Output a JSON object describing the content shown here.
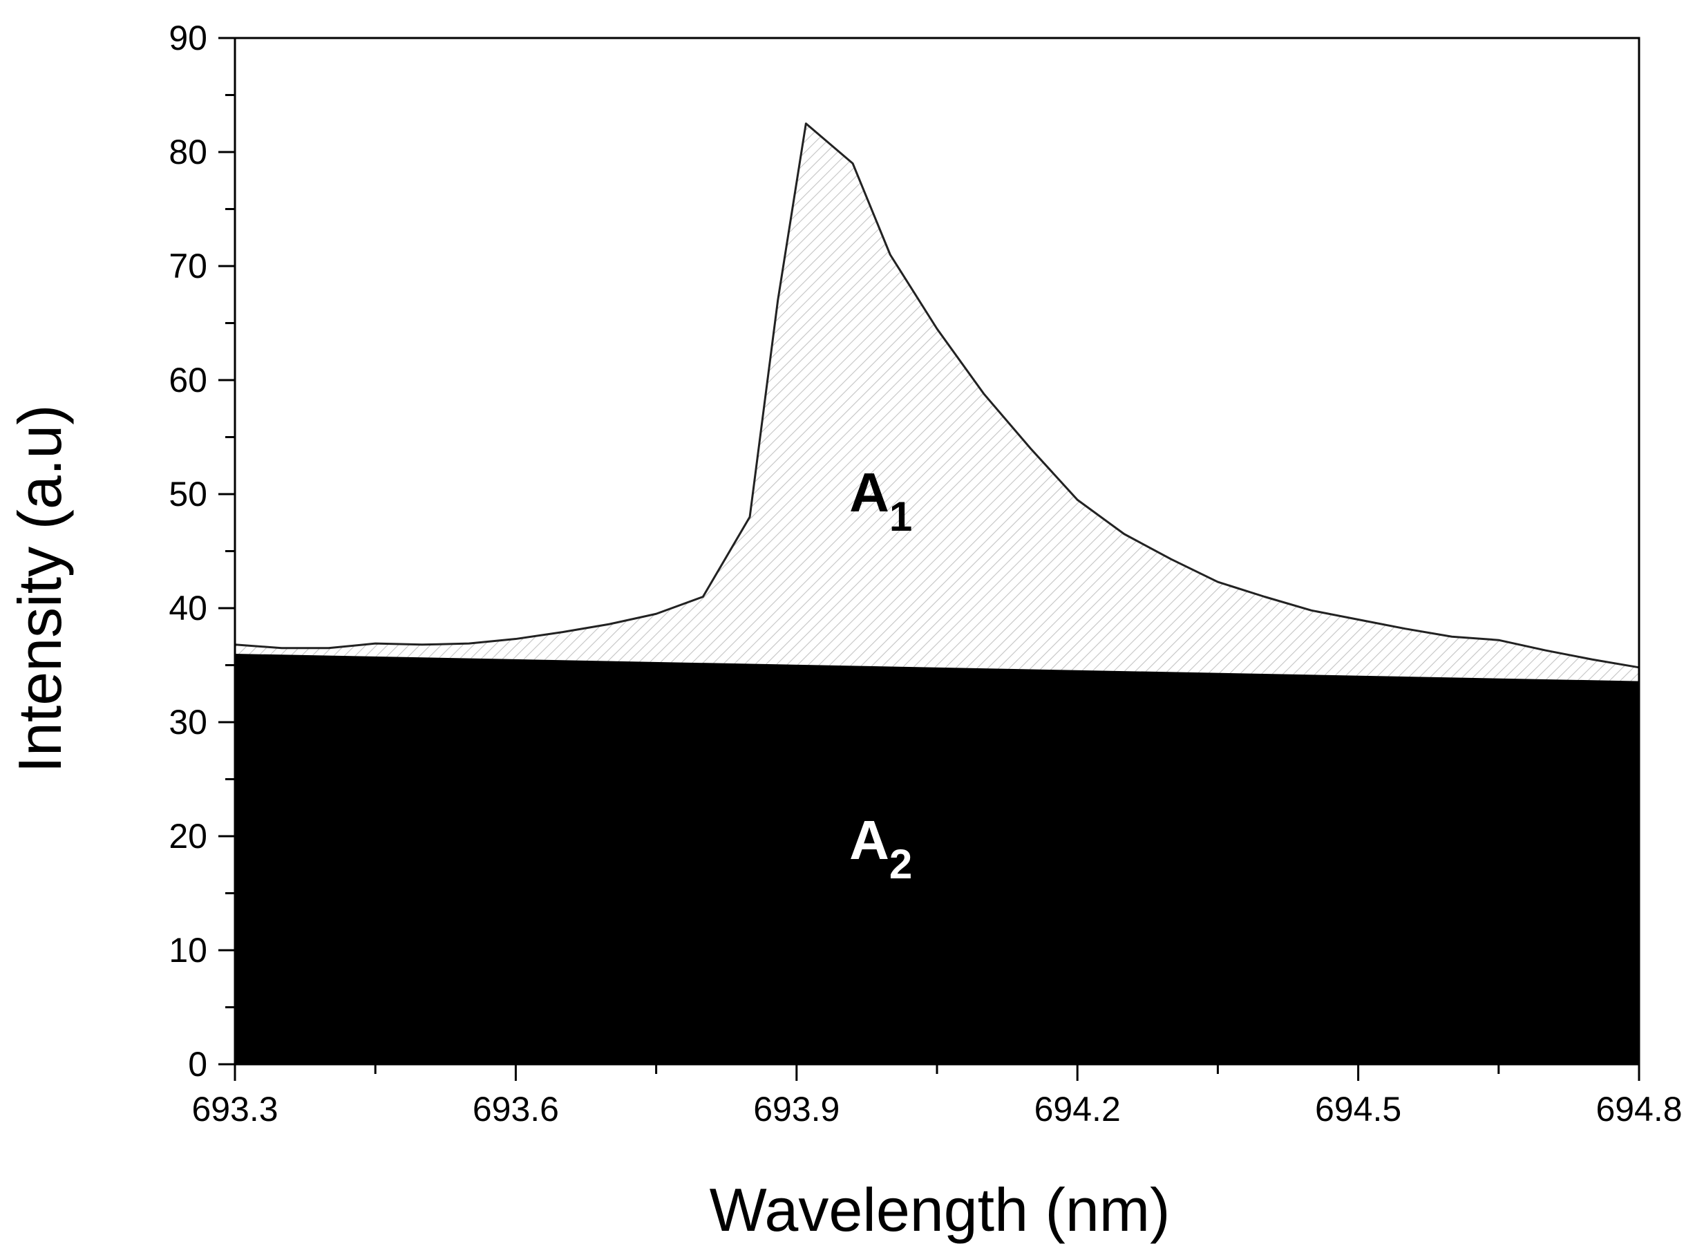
{
  "chart_data": {
    "type": "area",
    "xlabel": "Wavelength (nm)",
    "ylabel": "Intensity (a.u)",
    "xlim": [
      693.3,
      694.8
    ],
    "ylim": [
      0,
      90
    ],
    "xticks": [
      693.3,
      693.6,
      693.9,
      694.2,
      694.5,
      694.8
    ],
    "xtick_labels": [
      "693.3",
      "693.6",
      "693.9",
      "694.2",
      "694.5",
      "694.8"
    ],
    "yticks": [
      0,
      10,
      20,
      30,
      40,
      50,
      60,
      70,
      80,
      90
    ],
    "ytick_labels": [
      "0",
      "10",
      "20",
      "30",
      "40",
      "50",
      "60",
      "70",
      "80",
      "90"
    ],
    "x_minor_step": 0.15,
    "y_minor_step": 5,
    "series": [
      {
        "name": "Spectrum",
        "x": [
          693.3,
          693.35,
          693.4,
          693.45,
          693.5,
          693.55,
          693.6,
          693.65,
          693.7,
          693.75,
          693.8,
          693.85,
          693.88,
          693.91,
          693.96,
          694.0,
          694.05,
          694.1,
          694.15,
          694.2,
          694.25,
          694.3,
          694.35,
          694.4,
          694.45,
          694.5,
          694.55,
          694.6,
          694.65,
          694.7,
          694.75,
          694.8
        ],
        "y": [
          36.8,
          36.5,
          36.5,
          36.9,
          36.8,
          36.9,
          37.3,
          37.9,
          38.6,
          39.5,
          41.0,
          48.0,
          67.0,
          82.5,
          79.0,
          71.0,
          64.5,
          58.8,
          54.0,
          49.5,
          46.5,
          44.3,
          42.3,
          41.0,
          39.8,
          39.0,
          38.2,
          37.5,
          37.2,
          36.3,
          35.5,
          34.8
        ]
      },
      {
        "name": "Baseline",
        "x": [
          693.3,
          694.8
        ],
        "y": [
          36.0,
          33.6
        ]
      }
    ],
    "annotations": [
      {
        "id": "A1",
        "label": "A",
        "subscript": "1",
        "x": 693.99,
        "y": 48.5,
        "color": "#000000"
      },
      {
        "id": "A2",
        "label": "A",
        "subscript": "2",
        "x": 693.99,
        "y": 18.0,
        "color": "#ffffff"
      }
    ],
    "colors": {
      "a2_fill": "#000000",
      "a1_hatch": "#c8c8c8",
      "line": "#222222",
      "frame": "#000000"
    }
  }
}
